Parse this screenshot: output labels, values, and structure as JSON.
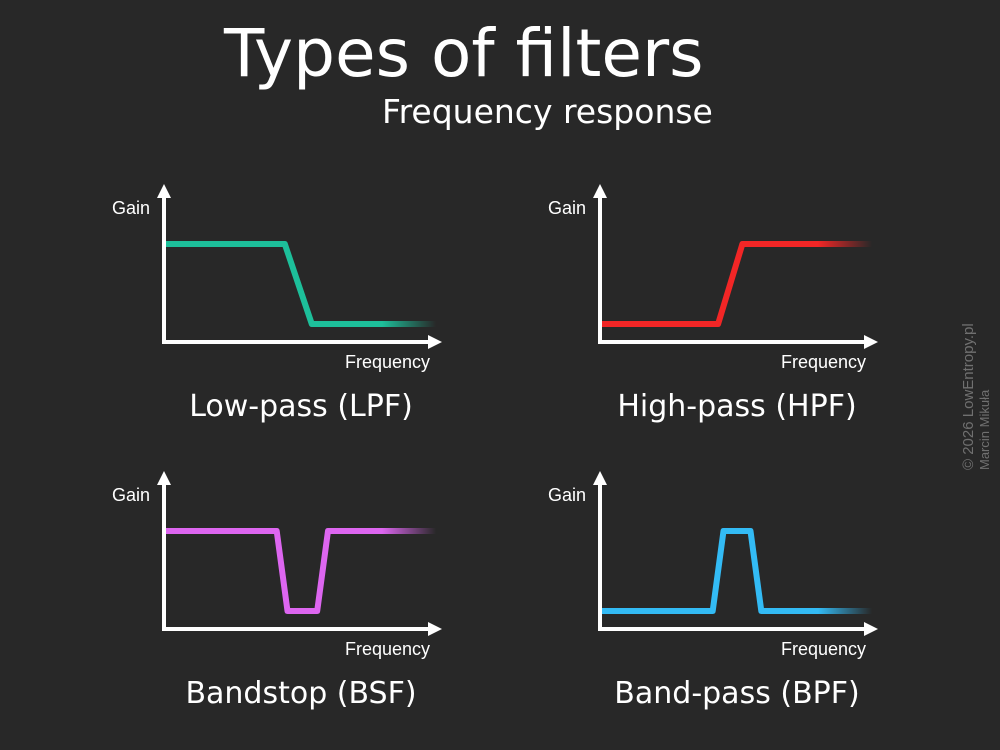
{
  "title": "Types of filters",
  "subtitle": "Frequency response",
  "credit": {
    "line1": "© 2026 LowEntropy.pl",
    "line2": "Marcin Mikuła"
  },
  "filters": [
    {
      "name": "Low-pass (LPF)",
      "y_axis": "Gain",
      "x_axis": "Frequency",
      "color": "#1dbf9a",
      "shape": [
        [
          0,
          1
        ],
        [
          0.44,
          1
        ],
        [
          0.54,
          0
        ],
        [
          1,
          0
        ]
      ]
    },
    {
      "name": "High-pass (HPF)",
      "y_axis": "Gain",
      "x_axis": "Frequency",
      "color": "#f22626",
      "shape": [
        [
          0,
          0
        ],
        [
          0.43,
          0
        ],
        [
          0.52,
          1
        ],
        [
          1,
          1
        ]
      ]
    },
    {
      "name": "Bandstop (BSF)",
      "y_axis": "Gain",
      "x_axis": "Frequency",
      "color": "#dd66f0",
      "shape": [
        [
          0,
          1
        ],
        [
          0.41,
          1
        ],
        [
          0.45,
          0
        ],
        [
          0.56,
          0
        ],
        [
          0.6,
          1
        ],
        [
          1,
          1
        ]
      ]
    },
    {
      "name": "Band-pass (BPF)",
      "y_axis": "Gain",
      "x_axis": "Frequency",
      "color": "#33bbf5",
      "shape": [
        [
          0,
          0
        ],
        [
          0.41,
          0
        ],
        [
          0.45,
          1
        ],
        [
          0.55,
          1
        ],
        [
          0.59,
          0
        ],
        [
          1,
          0
        ]
      ]
    }
  ]
}
